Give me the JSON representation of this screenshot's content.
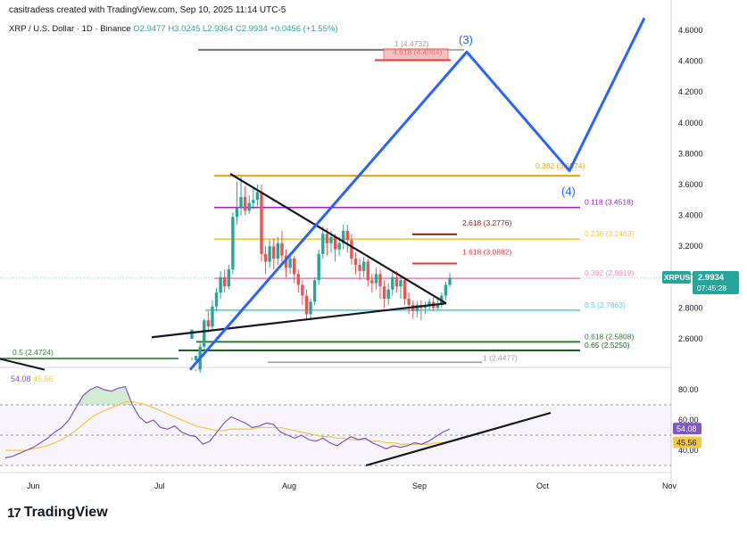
{
  "header": {
    "credit": "casitradess created with TradingView.com, Sep 10, 2025 11:14 UTC-5",
    "symbol": "XRP / U.S. Dollar · 1D · Binance",
    "open": "O2.9477",
    "high": "H3.0245",
    "low": "L2.9364",
    "close": "C2.9934",
    "change": "+0.0456 (+1.55%)"
  },
  "rsi_header": {
    "v1": "54.08",
    "v2": "45.56"
  },
  "logo_text": "TradingView",
  "colors": {
    "up": "#26a69a",
    "down": "#ef5350",
    "rsi": "#7e57c2",
    "rsi_ma": "#f2c94c",
    "elliott": "#2962ff",
    "trend": "#131722"
  },
  "chart_data": {
    "type": "candlestick",
    "title": "XRP / U.S. Dollar · 1D · Binance",
    "x_tick_labels": [
      "Jun",
      "Jul",
      "Aug",
      "Sep",
      "Oct",
      "Nov"
    ],
    "y_tick_labels": [
      "2.6000",
      "2.8000",
      "3.0000",
      "3.2000",
      "3.4000",
      "3.6000",
      "3.8000",
      "4.0000",
      "4.2000",
      "4.4000",
      "4.6000"
    ],
    "ylim": [
      2.35,
      4.68
    ],
    "price_label": {
      "symbol": "XRPUSD",
      "price": "2.9934",
      "countdown": "07:45:28"
    },
    "fib_levels": [
      {
        "label": "0.382 (3.6574)",
        "value": 3.6574,
        "color": "#f0a000"
      },
      {
        "label": "0.118 (3.4518)",
        "value": 3.4518,
        "color": "#9c27b0"
      },
      {
        "label": "0.236 (3.2463)",
        "value": 3.2463,
        "color": "#f4c542"
      },
      {
        "label": "0.382 (2.9919)",
        "value": 2.9919,
        "color": "#f48fb1"
      },
      {
        "label": "0.5 (2.7863)",
        "value": 2.7863,
        "color": "#4dd0e1"
      },
      {
        "label": "0.618 (2.5808)",
        "value": 2.5808,
        "color": "#2e7d32"
      },
      {
        "label": "0.65 (2.5250)",
        "value": 2.525,
        "color": "#1b5e20"
      },
      {
        "label": "0.5 (2.4724)",
        "value": 2.4724,
        "color": "#2e7d32"
      },
      {
        "label": "1 (2.4477)",
        "value": 2.4477,
        "color": "#9e9e9e"
      },
      {
        "label": "1 (4.4732)",
        "value": 4.4732,
        "color": "#9e9e9e"
      }
    ],
    "extension_levels": [
      {
        "label": "2.618 (3.2776)",
        "value": 3.2776,
        "color": "#8b1a1a"
      },
      {
        "label": "1.618 (3.0882)",
        "value": 3.0882,
        "color": "#e53935"
      },
      {
        "label": "4.618 (4.4064)",
        "value": 4.4064,
        "color": "#e53935"
      }
    ],
    "wave_labels": [
      "(3)",
      "(4)"
    ],
    "rsi": {
      "ylim": [
        30,
        90
      ],
      "y_tick_labels": [
        "40.00",
        "60.00",
        "80.00"
      ],
      "value": "54.08",
      "ma": "45.56"
    },
    "candles": [
      [
        2.6,
        2.66,
        2.48,
        2.46
      ],
      [
        2.46,
        2.49,
        2.4,
        2.39
      ],
      [
        2.4,
        2.55,
        2.57,
        2.38
      ],
      [
        2.55,
        2.72,
        2.73,
        2.52
      ],
      [
        2.72,
        2.68,
        2.78,
        2.64
      ],
      [
        2.68,
        2.81,
        2.85,
        2.66
      ],
      [
        2.81,
        2.9,
        2.93,
        2.78
      ],
      [
        2.9,
        3.0,
        3.04,
        2.86
      ],
      [
        3.0,
        2.94,
        3.05,
        2.9
      ],
      [
        2.94,
        3.05,
        3.08,
        2.92
      ],
      [
        3.05,
        3.39,
        3.42,
        3.02
      ],
      [
        3.39,
        3.45,
        3.62,
        3.34
      ],
      [
        3.45,
        3.52,
        3.65,
        3.4
      ],
      [
        3.52,
        3.43,
        3.59,
        3.4
      ],
      [
        3.43,
        3.48,
        3.53,
        3.41
      ],
      [
        3.48,
        3.5,
        3.58,
        3.44
      ],
      [
        3.5,
        3.55,
        3.6,
        3.46
      ],
      [
        3.55,
        3.15,
        3.6,
        3.1
      ],
      [
        3.15,
        3.1,
        3.2,
        3.02
      ],
      [
        3.1,
        3.2,
        3.24,
        3.06
      ],
      [
        3.2,
        3.12,
        3.25,
        3.05
      ],
      [
        3.12,
        3.22,
        3.26,
        3.08
      ],
      [
        3.22,
        3.14,
        3.3,
        3.1
      ],
      [
        3.14,
        3.06,
        3.18,
        3.0
      ],
      [
        3.06,
        3.12,
        3.16,
        3.02
      ],
      [
        3.12,
        3.02,
        3.14,
        2.96
      ],
      [
        3.02,
        2.95,
        3.05,
        2.9
      ],
      [
        2.95,
        2.88,
        2.98,
        2.82
      ],
      [
        2.88,
        2.76,
        2.92,
        2.72
      ],
      [
        2.76,
        2.84,
        2.86,
        2.72
      ],
      [
        2.84,
        2.98,
        3.0,
        2.82
      ],
      [
        2.98,
        3.15,
        3.18,
        2.95
      ],
      [
        3.15,
        3.28,
        3.33,
        3.12
      ],
      [
        3.28,
        3.22,
        3.32,
        3.14
      ],
      [
        3.22,
        3.26,
        3.3,
        3.16
      ],
      [
        3.26,
        3.18,
        3.28,
        3.1
      ],
      [
        3.18,
        3.22,
        3.26,
        3.14
      ],
      [
        3.22,
        3.3,
        3.34,
        3.18
      ],
      [
        3.3,
        3.24,
        3.34,
        3.16
      ],
      [
        3.24,
        3.12,
        3.28,
        3.08
      ],
      [
        3.12,
        3.08,
        3.16,
        3.02
      ],
      [
        3.08,
        3.04,
        3.12,
        2.98
      ],
      [
        3.04,
        3.1,
        3.13,
        3.0
      ],
      [
        3.1,
        2.98,
        3.12,
        2.94
      ],
      [
        2.98,
        2.96,
        3.02,
        2.9
      ],
      [
        2.96,
        3.02,
        3.06,
        2.92
      ],
      [
        3.02,
        2.94,
        3.05,
        2.86
      ],
      [
        2.94,
        2.86,
        2.98,
        2.8
      ],
      [
        2.86,
        2.92,
        2.96,
        2.82
      ],
      [
        2.92,
        3.0,
        3.03,
        2.88
      ],
      [
        3.0,
        2.94,
        3.04,
        2.9
      ],
      [
        2.94,
        2.98,
        3.0,
        2.86
      ],
      [
        2.98,
        2.86,
        3.0,
        2.82
      ],
      [
        2.86,
        2.82,
        2.9,
        2.76
      ],
      [
        2.82,
        2.78,
        2.85,
        2.73
      ],
      [
        2.78,
        2.82,
        2.84,
        2.74
      ],
      [
        2.82,
        2.8,
        2.85,
        2.72
      ],
      [
        2.8,
        2.81,
        2.84,
        2.76
      ],
      [
        2.81,
        2.84,
        2.86,
        2.79
      ],
      [
        2.84,
        2.8,
        2.87,
        2.78
      ],
      [
        2.8,
        2.82,
        2.86,
        2.79
      ],
      [
        2.82,
        2.88,
        2.9,
        2.8
      ],
      [
        2.88,
        2.95,
        2.97,
        2.85
      ],
      [
        2.95,
        2.9934,
        3.0245,
        2.9364
      ]
    ],
    "rsi_values": [
      35,
      36,
      38,
      40,
      42,
      45,
      48,
      52,
      55,
      60,
      68,
      76,
      80,
      82,
      80,
      79,
      81,
      82,
      70,
      62,
      58,
      60,
      55,
      54,
      56,
      52,
      50,
      49,
      44,
      46,
      52,
      58,
      62,
      60,
      58,
      55,
      56,
      58,
      57,
      52,
      50,
      48,
      50,
      47,
      46,
      48,
      45,
      43,
      46,
      49,
      47,
      48,
      45,
      43,
      41,
      43,
      42,
      43,
      45,
      44,
      46,
      49,
      52,
      54
    ],
    "rsi_ma_values": [
      40,
      40,
      40,
      40,
      41,
      42,
      43,
      45,
      47,
      50,
      53,
      57,
      61,
      64,
      66,
      68,
      70,
      72,
      72,
      71,
      70,
      68,
      66,
      64,
      62,
      60,
      58,
      56,
      55,
      54,
      53,
      53,
      54,
      54,
      54,
      54,
      55,
      55,
      55,
      55,
      54,
      53,
      52,
      51,
      50,
      49,
      49,
      48,
      48,
      47,
      47,
      47,
      46,
      46,
      45,
      45,
      44,
      44,
      44,
      44,
      44,
      45,
      45,
      46
    ]
  }
}
